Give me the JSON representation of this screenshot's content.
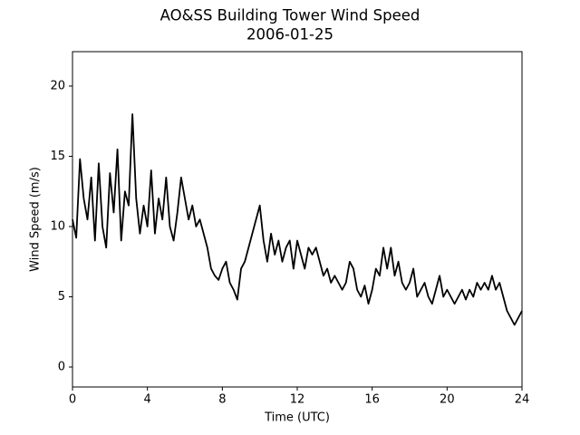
{
  "chart_data": {
    "type": "line",
    "title": "AO&SS Building Tower Wind Speed",
    "subtitle": "2006-01-25",
    "x_label": "Time (UTC)",
    "y_label": "Wind Speed (m/s)",
    "xlim": [
      0,
      24
    ],
    "xticks": [
      0,
      4,
      8,
      12,
      16,
      20,
      24
    ],
    "ylim": [
      -1.42,
      22.45
    ],
    "yticks": [
      0,
      5,
      10,
      15,
      20
    ],
    "grid": false,
    "x": [
      0,
      0.2,
      0.4,
      0.6,
      0.8,
      1,
      1.2,
      1.4,
      1.6,
      1.8,
      2,
      2.2,
      2.4,
      2.6,
      2.8,
      3,
      3.2,
      3.4,
      3.6,
      3.8,
      4,
      4.2,
      4.4,
      4.6,
      4.8,
      5,
      5.2,
      5.4,
      5.6,
      5.8,
      6,
      6.2,
      6.4,
      6.6,
      6.8,
      7,
      7.2,
      7.4,
      7.6,
      7.8,
      8,
      8.2,
      8.4,
      8.6,
      8.8,
      9,
      9.2,
      9.4,
      9.6,
      9.8,
      10,
      10.2,
      10.4,
      10.6,
      10.8,
      11,
      11.2,
      11.4,
      11.6,
      11.8,
      12,
      12.2,
      12.4,
      12.6,
      12.8,
      13,
      13.2,
      13.4,
      13.6,
      13.8,
      14,
      14.2,
      14.4,
      14.6,
      14.8,
      15,
      15.2,
      15.4,
      15.6,
      15.8,
      16,
      16.2,
      16.4,
      16.6,
      16.8,
      17,
      17.2,
      17.4,
      17.6,
      17.8,
      18,
      18.2,
      18.4,
      18.6,
      18.8,
      19,
      19.2,
      19.4,
      19.6,
      19.8,
      20,
      20.2,
      20.4,
      20.6,
      20.8,
      21,
      21.2,
      21.4,
      21.6,
      21.8,
      22,
      22.2,
      22.4,
      22.6,
      22.8,
      23,
      23.2,
      23.4,
      23.6,
      23.8,
      24
    ],
    "series": [
      {
        "color": "#000000",
        "values": [
          10.5,
          9.2,
          14.8,
          12.0,
          10.5,
          13.5,
          9.0,
          14.5,
          10.0,
          8.5,
          13.8,
          11.0,
          15.5,
          9.0,
          12.5,
          11.5,
          18.0,
          12.0,
          9.5,
          11.5,
          10.0,
          14.0,
          9.5,
          12.0,
          10.5,
          13.5,
          10.0,
          9.0,
          11.0,
          13.5,
          12.0,
          10.5,
          11.5,
          10.0,
          10.5,
          9.5,
          8.5,
          7.0,
          6.5,
          6.2,
          7.0,
          7.5,
          6.0,
          5.5,
          4.8,
          7.0,
          7.5,
          8.5,
          9.5,
          10.5,
          11.5,
          9.0,
          7.5,
          9.5,
          8.0,
          9.0,
          7.5,
          8.5,
          9.0,
          7.0,
          9.0,
          8.0,
          7.0,
          8.5,
          8.0,
          8.5,
          7.5,
          6.5,
          7.0,
          6.0,
          6.5,
          6.0,
          5.5,
          6.0,
          7.5,
          7.0,
          5.5,
          5.0,
          5.8,
          4.5,
          5.5,
          7.0,
          6.5,
          8.5,
          7.0,
          8.5,
          6.5,
          7.5,
          6.0,
          5.5,
          6.0,
          7.0,
          5.0,
          5.5,
          6.0,
          5.0,
          4.5,
          5.5,
          6.5,
          5.0,
          5.5,
          5.0,
          4.5,
          5.0,
          5.5,
          4.8,
          5.5,
          5.0,
          6.0,
          5.5,
          6.0,
          5.5,
          6.5,
          5.5,
          6.0,
          5.0,
          4.0,
          3.5,
          3.0,
          3.5,
          4.0
        ]
      }
    ]
  }
}
